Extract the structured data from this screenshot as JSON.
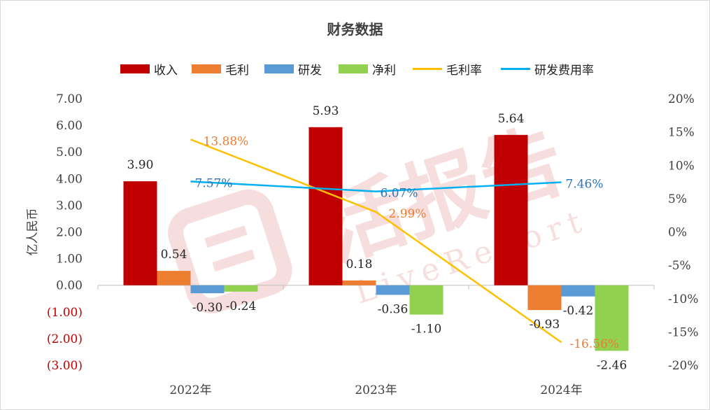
{
  "chart_data": {
    "type": "bar",
    "title": "财务数据",
    "ylabel": "亿人民币",
    "categories": [
      "2022年",
      "2023年",
      "2024年"
    ],
    "ylim": [
      -3,
      7
    ],
    "y_ticks": [
      "7.00",
      "6.00",
      "5.00",
      "4.00",
      "3.00",
      "2.00",
      "1.00",
      "0.00",
      "(1.00)",
      "(2.00)",
      "(3.00)"
    ],
    "y_tick_values": [
      7,
      6,
      5,
      4,
      3,
      2,
      1,
      0,
      -1,
      -2,
      -3
    ],
    "y2lim": [
      -20,
      20
    ],
    "y2_ticks": [
      "20%",
      "15%",
      "10%",
      "5%",
      "0%",
      "-5%",
      "-10%",
      "-15%",
      "-20%"
    ],
    "y2_tick_values": [
      20,
      15,
      10,
      5,
      0,
      -5,
      -10,
      -15,
      -20
    ],
    "series": [
      {
        "name": "收入",
        "kind": "bar",
        "color": "#c00000",
        "values": [
          3.9,
          5.93,
          5.64
        ],
        "labels": [
          "3.90",
          "5.93",
          "5.64"
        ]
      },
      {
        "name": "毛利",
        "kind": "bar",
        "color": "#ed7d31",
        "values": [
          0.54,
          0.18,
          -0.93
        ],
        "labels": [
          "0.54",
          "0.18",
          "-0.93"
        ]
      },
      {
        "name": "研发",
        "kind": "bar",
        "color": "#5b9bd5",
        "values": [
          -0.3,
          -0.36,
          -0.42
        ],
        "labels": [
          "-0.30",
          "-0.36",
          "-0.42"
        ]
      },
      {
        "name": "净利",
        "kind": "bar",
        "color": "#92d050",
        "values": [
          -0.24,
          -1.1,
          -2.46
        ],
        "labels": [
          "-0.24",
          "-1.10",
          "-2.46"
        ]
      },
      {
        "name": "毛利率",
        "kind": "line",
        "color": "#ffc000",
        "label_color": "#ed7d31",
        "values": [
          13.88,
          2.99,
          -16.56
        ],
        "labels": [
          "13.88%",
          "2.99%",
          "-16.56%"
        ]
      },
      {
        "name": "研发费用率",
        "kind": "line",
        "color": "#00b0f0",
        "label_color": "#2e75b6",
        "values": [
          7.57,
          6.07,
          7.46
        ],
        "labels": [
          "7.57%",
          "6.07%",
          "7.46%"
        ]
      }
    ],
    "negative_tick_color": "#c00000",
    "watermark": "活报告 LiveReport",
    "legend_position": "top"
  }
}
